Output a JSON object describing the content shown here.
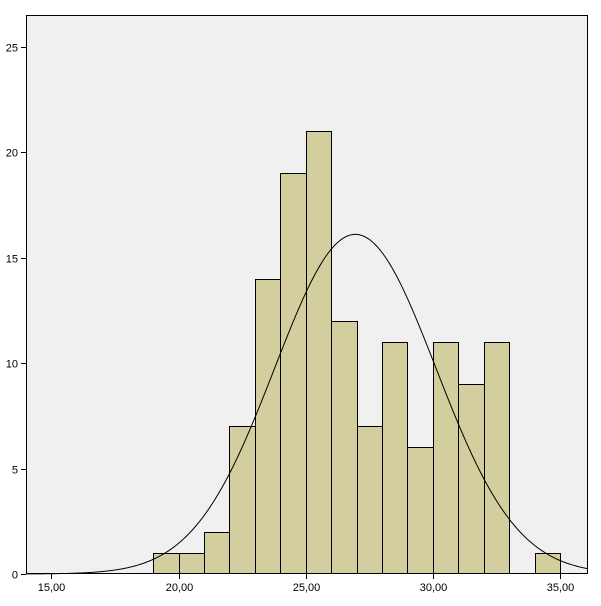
{
  "chart_data": {
    "type": "bar",
    "subtype": "histogram",
    "title": "",
    "xlabel": "",
    "ylabel": "",
    "xlim": [
      14,
      36.1
    ],
    "ylim": [
      0,
      26.5
    ],
    "x_ticks": [
      {
        "value": 15,
        "label": "15,00"
      },
      {
        "value": 20,
        "label": "20,00"
      },
      {
        "value": 25,
        "label": "25,00"
      },
      {
        "value": 30,
        "label": "30,00"
      },
      {
        "value": 35,
        "label": "35,00"
      }
    ],
    "y_ticks": [
      {
        "value": 0,
        "label": "0"
      },
      {
        "value": 5,
        "label": "5"
      },
      {
        "value": 10,
        "label": "10"
      },
      {
        "value": 15,
        "label": "15"
      },
      {
        "value": 20,
        "label": "20"
      },
      {
        "value": 25,
        "label": "25"
      }
    ],
    "bins": [
      {
        "x0": 19,
        "x1": 20,
        "count": 1
      },
      {
        "x0": 20,
        "x1": 21,
        "count": 1
      },
      {
        "x0": 21,
        "x1": 22,
        "count": 2
      },
      {
        "x0": 22,
        "x1": 23,
        "count": 7
      },
      {
        "x0": 23,
        "x1": 24,
        "count": 14
      },
      {
        "x0": 24,
        "x1": 25,
        "count": 19
      },
      {
        "x0": 25,
        "x1": 26,
        "count": 21
      },
      {
        "x0": 26,
        "x1": 27,
        "count": 12
      },
      {
        "x0": 27,
        "x1": 28,
        "count": 7
      },
      {
        "x0": 28,
        "x1": 29,
        "count": 11
      },
      {
        "x0": 29,
        "x1": 30,
        "count": 6
      },
      {
        "x0": 30,
        "x1": 31,
        "count": 11
      },
      {
        "x0": 31,
        "x1": 32,
        "count": 9
      },
      {
        "x0": 32,
        "x1": 33,
        "count": 11
      },
      {
        "x0": 34,
        "x1": 35,
        "count": 1
      }
    ],
    "normal_curve": {
      "mean": 26.95,
      "std_dev": 3.17,
      "peak": 16.1
    },
    "grid": false,
    "legend": "none",
    "colors": {
      "bar_fill": "#d3ce9d",
      "bar_stroke": "#000000",
      "plot_background": "#f0f0f0",
      "curve": "#000000"
    }
  }
}
